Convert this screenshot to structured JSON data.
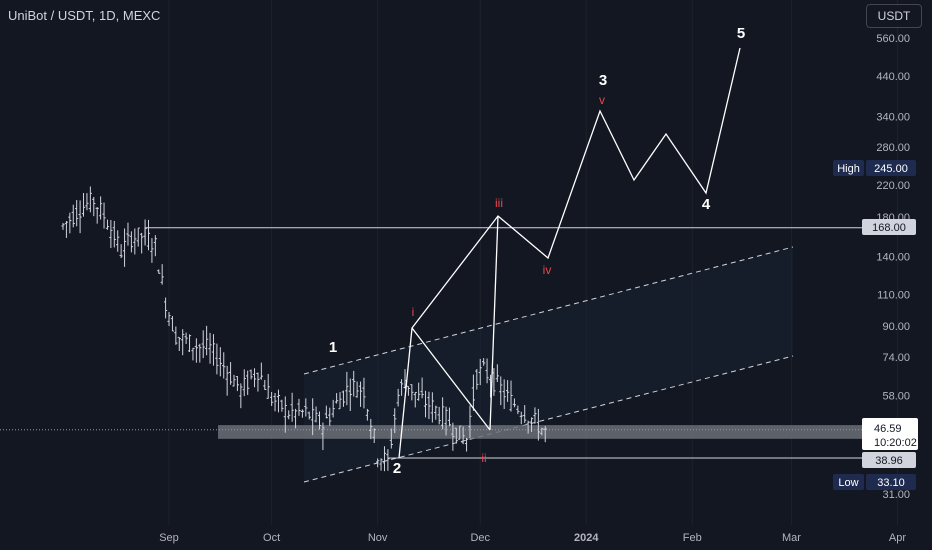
{
  "title": "UniBot / USDT, 1D, MEXC",
  "currency_button": "USDT",
  "colors": {
    "background": "#131722",
    "text": "#d1d4dc",
    "price_line": "#d1d4dc",
    "wave_white": "#ffffff",
    "wave_red": "#e5484d",
    "channel_fill": "#1a2332",
    "badge_blue": "#1e2b4f",
    "support_band": "#6b6e75"
  },
  "chart_data": {
    "type": "candlestick",
    "scale": "log",
    "y_ticks": [
      "560.00",
      "440.00",
      "340.00",
      "280.00",
      "220.00",
      "180.00",
      "140.00",
      "110.00",
      "90.00",
      "74.00",
      "58.00",
      "46.59",
      "38.96",
      "31.00"
    ],
    "x_ticks": [
      "Sep",
      "Oct",
      "Nov",
      "Dec",
      "2024",
      "Feb",
      "Mar",
      "Apr"
    ],
    "price_labels": {
      "high_label": "High",
      "high_value": "245.00",
      "low_label": "Low",
      "low_value": "33.10",
      "current_price": "46.59",
      "countdown": "10:20:02",
      "level_168": "168.00",
      "level_3896": "38.96"
    },
    "horizontal_levels": [
      168.0,
      38.96
    ],
    "support_band": [
      44.0,
      48.0
    ],
    "primary_wave_labels": [
      "1",
      "2",
      "3",
      "4",
      "5"
    ],
    "primary_wave_path": [
      [
        86.0,
        69.4
      ],
      [
        89.5,
        38.96
      ],
      [
        170,
        420
      ],
      [
        208,
        185
      ],
      [
        232,
        600
      ]
    ],
    "minor_wave_labels": [
      "i",
      "ii",
      "iii",
      "iv",
      "v"
    ],
    "minor_wave_path": [
      [
        89.5,
        39.5
      ],
      [
        92,
        83.0
      ],
      [
        99,
        48.0
      ],
      [
        101,
        175
      ],
      [
        106,
        138
      ],
      [
        113,
        330
      ]
    ],
    "correction_path": [
      [
        113,
        330
      ],
      [
        118,
        215
      ],
      [
        123,
        285
      ],
      [
        129,
        200
      ]
    ]
  }
}
